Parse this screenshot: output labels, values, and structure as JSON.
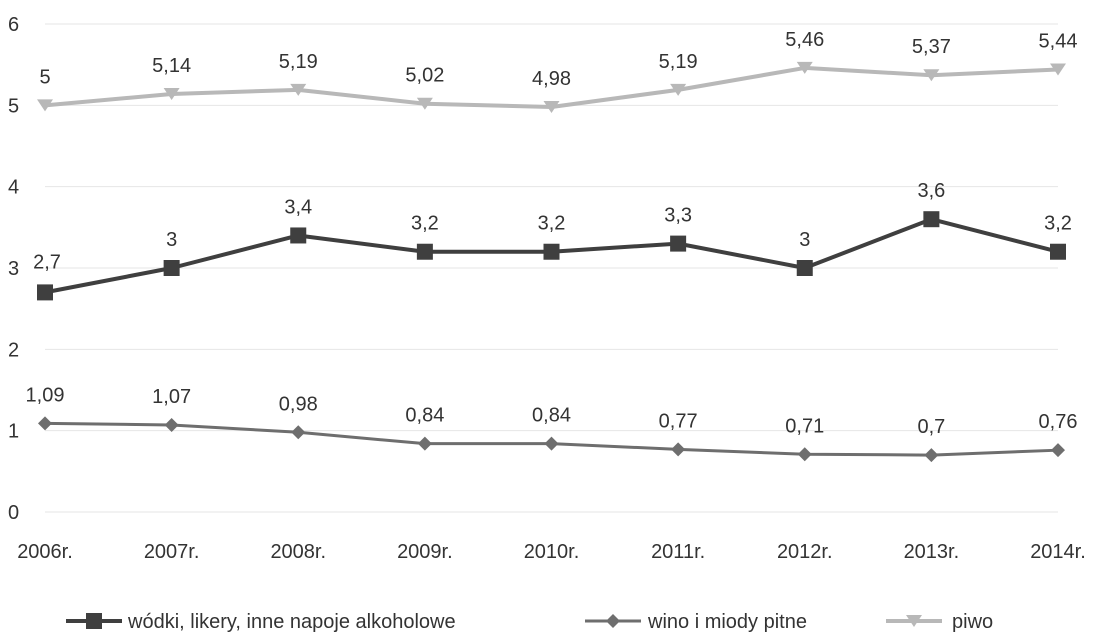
{
  "chart_data": {
    "type": "line",
    "categories": [
      "2006r.",
      "2007r.",
      "2008r.",
      "2009r.",
      "2010r.",
      "2011r.",
      "2012r.",
      "2013r.",
      "2014r."
    ],
    "ylim": [
      0,
      6
    ],
    "yticks": [
      "0",
      "1",
      "2",
      "3",
      "4",
      "5",
      "6"
    ],
    "grid": true,
    "legend_position": "bottom",
    "series": [
      {
        "name": "wódki, likery, inne napoje alkoholowe",
        "values": [
          2.7,
          3,
          3.4,
          3.2,
          3.2,
          3.3,
          3,
          3.6,
          3.2
        ],
        "labels": [
          "2,7",
          "3",
          "3,4",
          "3,2",
          "3,2",
          "3,3",
          "3",
          "3,6",
          "3,2"
        ],
        "color": "#3f3f3f",
        "marker": "square"
      },
      {
        "name": "wino i miody pitne",
        "values": [
          1.09,
          1.07,
          0.98,
          0.84,
          0.84,
          0.77,
          0.71,
          0.7,
          0.76
        ],
        "labels": [
          "1,09",
          "1,07",
          "0,98",
          "0,84",
          "0,84",
          "0,77",
          "0,71",
          "0,7",
          "0,76"
        ],
        "color": "#6e6e6e",
        "marker": "diamond"
      },
      {
        "name": "piwo",
        "values": [
          5,
          5.14,
          5.19,
          5.02,
          4.98,
          5.19,
          5.46,
          5.37,
          5.44
        ],
        "labels": [
          "5",
          "5,14",
          "5,19",
          "5,02",
          "4,98",
          "5,19",
          "5,46",
          "5,37",
          "5,44"
        ],
        "color": "#b8b8b8",
        "marker": "triangle-down"
      }
    ]
  }
}
